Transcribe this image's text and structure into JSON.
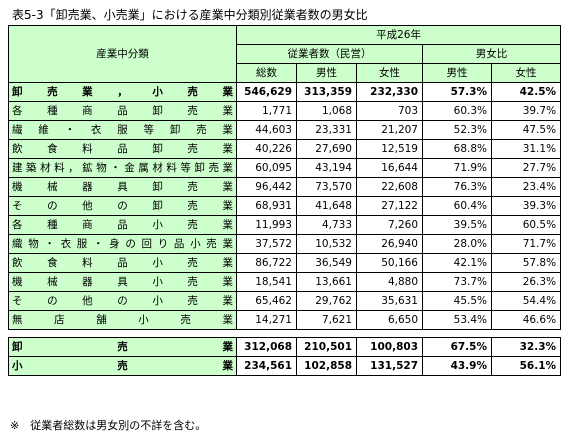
{
  "title": "表5-3「卸売業、小売業」における産業中分類別従業者数の男女比",
  "header": {
    "category": "産業中分類",
    "year": "平成26年",
    "employees": "従業者数（民営）",
    "ratio": "男女比",
    "total": "総数",
    "male": "男性",
    "female": "女性",
    "male_ratio": "男性",
    "female_ratio": "女性"
  },
  "rows": [
    {
      "label": "卸売業，小売業",
      "total": "546,629",
      "male": "313,359",
      "female": "232,330",
      "male_ratio": "57.3%",
      "female_ratio": "42.5%"
    },
    {
      "label": "各種商品卸売業",
      "total": "1,771",
      "male": "1,068",
      "female": "703",
      "male_ratio": "60.3%",
      "female_ratio": "39.7%"
    },
    {
      "label": "繊維・衣服等卸売業",
      "total": "44,603",
      "male": "23,331",
      "female": "21,207",
      "male_ratio": "52.3%",
      "female_ratio": "47.5%"
    },
    {
      "label": "飲食料品卸売業",
      "total": "40,226",
      "male": "27,690",
      "female": "12,519",
      "male_ratio": "68.8%",
      "female_ratio": "31.1%"
    },
    {
      "label": "建築材料，鉱物・金属材料等卸売業",
      "total": "60,095",
      "male": "43,194",
      "female": "16,644",
      "male_ratio": "71.9%",
      "female_ratio": "27.7%"
    },
    {
      "label": "機械器具卸売業",
      "total": "96,442",
      "male": "73,570",
      "female": "22,608",
      "male_ratio": "76.3%",
      "female_ratio": "23.4%"
    },
    {
      "label": "その他の卸売業",
      "total": "68,931",
      "male": "41,648",
      "female": "27,122",
      "male_ratio": "60.4%",
      "female_ratio": "39.3%"
    },
    {
      "label": "各種商品小売業",
      "total": "11,993",
      "male": "4,733",
      "female": "7,260",
      "male_ratio": "39.5%",
      "female_ratio": "60.5%"
    },
    {
      "label": "織物・衣服・身の回り品小売業",
      "total": "37,572",
      "male": "10,532",
      "female": "26,940",
      "male_ratio": "28.0%",
      "female_ratio": "71.7%"
    },
    {
      "label": "飲食料品小売業",
      "total": "86,722",
      "male": "36,549",
      "female": "50,166",
      "male_ratio": "42.1%",
      "female_ratio": "57.8%"
    },
    {
      "label": "機械器具小売業",
      "total": "18,541",
      "male": "13,661",
      "female": "4,880",
      "male_ratio": "73.7%",
      "female_ratio": "26.3%"
    },
    {
      "label": "その他の小売業",
      "total": "65,462",
      "male": "29,762",
      "female": "35,631",
      "male_ratio": "45.5%",
      "female_ratio": "54.4%"
    },
    {
      "label": "無店舗小売業",
      "total": "14,271",
      "male": "7,621",
      "female": "6,650",
      "male_ratio": "53.4%",
      "female_ratio": "46.6%"
    }
  ],
  "summary_rows": [
    {
      "label": "卸売業",
      "total": "312,068",
      "male": "210,501",
      "female": "100,803",
      "male_ratio": "67.5%",
      "female_ratio": "32.3%"
    },
    {
      "label": "小売業",
      "total": "234,561",
      "male": "102,858",
      "female": "131,527",
      "male_ratio": "43.9%",
      "female_ratio": "56.1%"
    }
  ],
  "note": "※　従業者総数は男女別の不詳を含む。"
}
